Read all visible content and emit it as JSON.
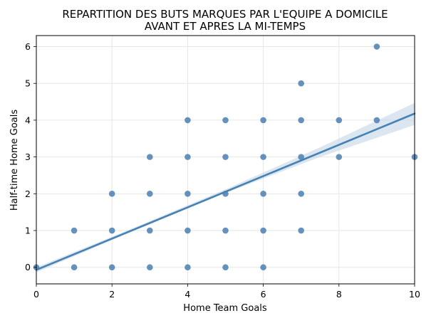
{
  "chart_data": {
    "type": "scatter",
    "title": [
      "REPARTITION DES BUTS MARQUES PAR L'EQUIPE A DOMICILE",
      "AVANT ET APRES LA MI-TEMPS"
    ],
    "xlabel": "Home Team Goals",
    "ylabel": "Half-time Home Goals",
    "xlim": [
      0,
      10
    ],
    "ylim": [
      -0.45,
      6.3
    ],
    "x_ticks": [
      "0",
      "2",
      "4",
      "6",
      "8",
      "10"
    ],
    "y_ticks": [
      "0",
      "1",
      "2",
      "3",
      "4",
      "5",
      "6"
    ],
    "grid": true,
    "point_color": "#4a7fb0",
    "line_color": "#4682b4",
    "band_color": "#c9d9ea",
    "points": [
      [
        0,
        0
      ],
      [
        1,
        0
      ],
      [
        1,
        1
      ],
      [
        2,
        0
      ],
      [
        2,
        1
      ],
      [
        2,
        2
      ],
      [
        3,
        0
      ],
      [
        3,
        1
      ],
      [
        3,
        2
      ],
      [
        3,
        3
      ],
      [
        4,
        0
      ],
      [
        4,
        1
      ],
      [
        4,
        2
      ],
      [
        4,
        3
      ],
      [
        4,
        4
      ],
      [
        5,
        0
      ],
      [
        5,
        1
      ],
      [
        5,
        2
      ],
      [
        5,
        3
      ],
      [
        5,
        4
      ],
      [
        6,
        0
      ],
      [
        6,
        1
      ],
      [
        6,
        2
      ],
      [
        6,
        3
      ],
      [
        6,
        4
      ],
      [
        7,
        1
      ],
      [
        7,
        2
      ],
      [
        7,
        3
      ],
      [
        7,
        4
      ],
      [
        7,
        5
      ],
      [
        8,
        3
      ],
      [
        8,
        4
      ],
      [
        9,
        4
      ],
      [
        9,
        6
      ],
      [
        10,
        3
      ]
    ],
    "regression": {
      "x": [
        0,
        10
      ],
      "y": [
        -0.07,
        4.18
      ],
      "band": [
        {
          "x": 0,
          "lo": -0.14,
          "hi": 0.0
        },
        {
          "x": 2.5,
          "lo": 0.96,
          "hi": 1.04
        },
        {
          "x": 5,
          "lo": 2.02,
          "hi": 2.12
        },
        {
          "x": 7.5,
          "lo": 3.0,
          "hi": 3.26
        },
        {
          "x": 10,
          "lo": 3.87,
          "hi": 4.47
        }
      ]
    }
  }
}
